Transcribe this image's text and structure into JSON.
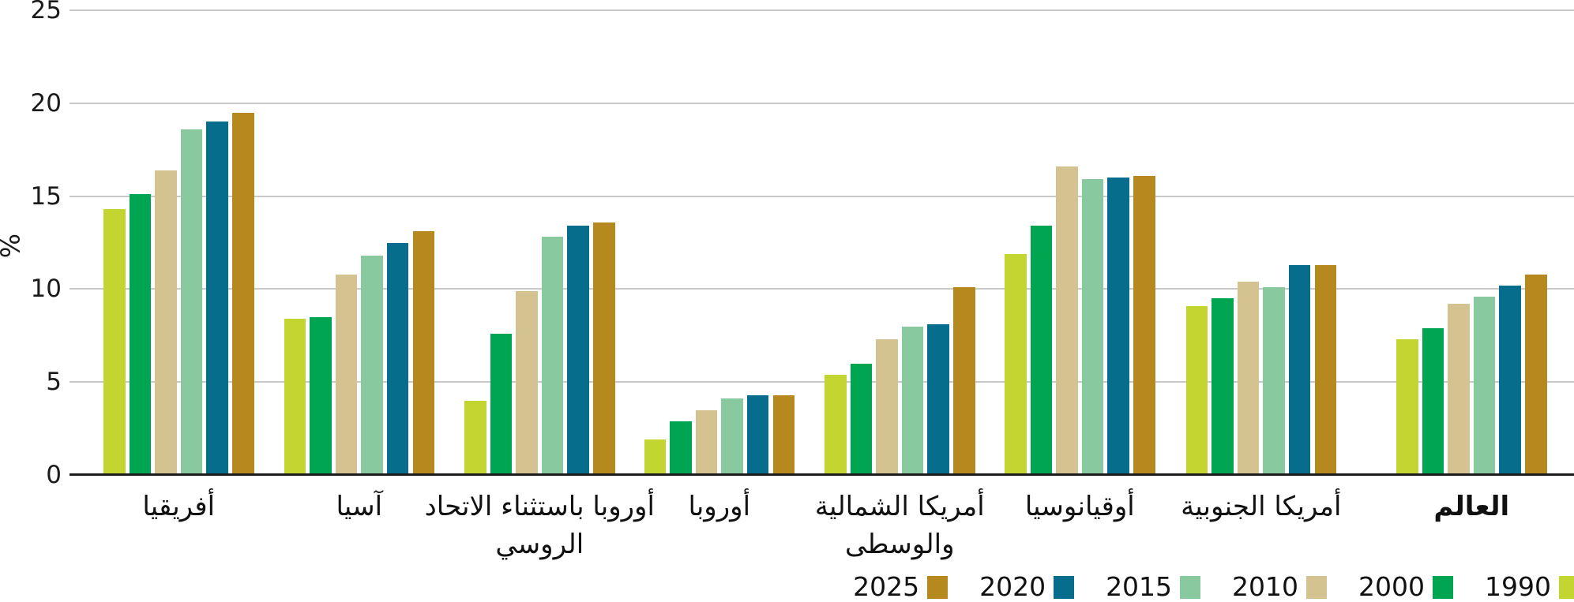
{
  "chart_data": {
    "type": "bar",
    "title": "",
    "ylabel": "%",
    "ylim": [
      0,
      25
    ],
    "yticks": [
      25,
      20,
      15,
      10,
      5,
      0
    ],
    "grid": true,
    "legend_position": "bottom-right",
    "categories": [
      "أفريقيا",
      "آسيا",
      "أوروبا باستثناء الاتحاد الروسي",
      "أوروبا",
      "أمريكا الشمالية والوسطى",
      "أوقيانوسيا",
      "أمريكا الجنوبية",
      "العالم"
    ],
    "category_label_lines": [
      [
        "أفريقيا"
      ],
      [
        "آسيا"
      ],
      [
        "أوروبا باستثناء الاتحاد",
        "الروسي"
      ],
      [
        "أوروبا"
      ],
      [
        "أمريكا الشمالية",
        "والوسطى"
      ],
      [
        "أوقيانوسيا"
      ],
      [
        "أمريكا الجنوبية"
      ],
      [
        "العالم"
      ]
    ],
    "bold_category": "العالم",
    "series": [
      {
        "name": "1990",
        "color": "#c3d530",
        "values": [
          14.3,
          8.4,
          4.0,
          1.9,
          5.4,
          11.9,
          9.1,
          7.3
        ]
      },
      {
        "name": "2000",
        "color": "#00a551",
        "values": [
          15.1,
          8.5,
          7.6,
          2.9,
          6.0,
          13.4,
          9.5,
          7.9
        ]
      },
      {
        "name": "2010",
        "color": "#d4c291",
        "values": [
          16.4,
          10.8,
          9.9,
          3.5,
          7.3,
          16.6,
          10.4,
          9.2
        ]
      },
      {
        "name": "2015",
        "color": "#89c9a0",
        "values": [
          18.6,
          11.8,
          12.8,
          4.1,
          8.0,
          15.9,
          10.1,
          9.6
        ]
      },
      {
        "name": "2020",
        "color": "#076d8c",
        "values": [
          19.0,
          12.5,
          13.4,
          4.3,
          8.1,
          16.0,
          11.3,
          10.2
        ]
      },
      {
        "name": "2025",
        "color": "#b5891e",
        "values": [
          19.5,
          13.1,
          13.6,
          4.3,
          10.1,
          16.1,
          11.3,
          10.8
        ]
      }
    ]
  },
  "axis": {
    "percent_label": "%",
    "tick_labels": [
      "25",
      "20",
      "15",
      "10",
      "5",
      "0"
    ]
  },
  "legend": {
    "items": [
      {
        "label": "2025",
        "color": "#b5891e"
      },
      {
        "label": "2020",
        "color": "#076d8c"
      },
      {
        "label": "2015",
        "color": "#89c9a0"
      },
      {
        "label": "2010",
        "color": "#d4c291"
      },
      {
        "label": "2000",
        "color": "#00a551"
      },
      {
        "label": "1990",
        "color": "#c3d530"
      }
    ]
  }
}
